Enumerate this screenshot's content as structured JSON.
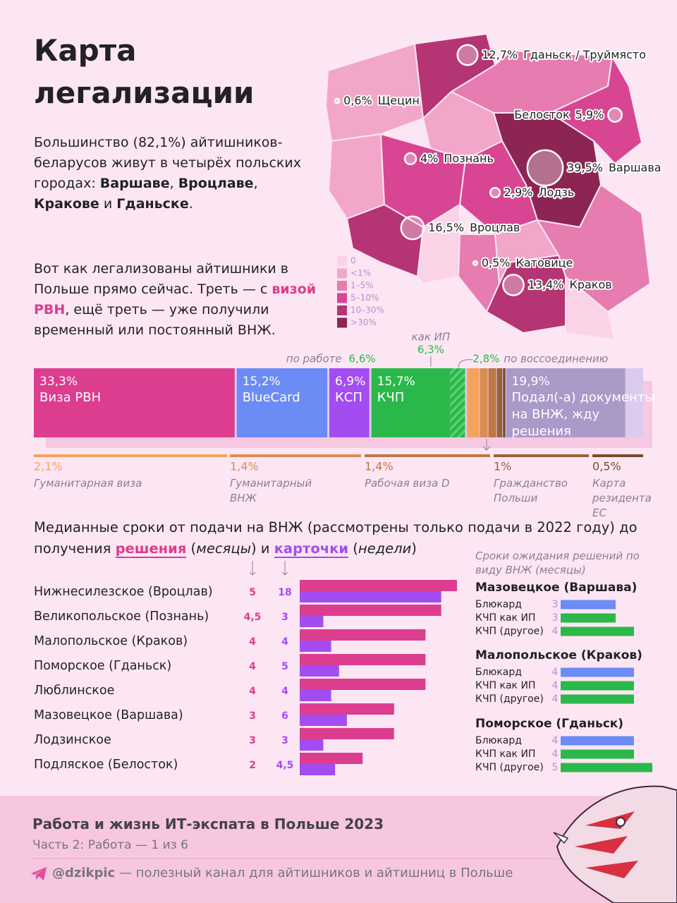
{
  "header": {
    "title": "Карта легализации"
  },
  "intro": [
    {
      "text": "Большинство (82,1%) айтишников-беларусов живут в четырёх польских городах: "
    },
    {
      "text": "Варшаве",
      "bold": true
    },
    {
      "text": ", "
    },
    {
      "text": "Вроцлаве",
      "bold": true
    },
    {
      "text": ", "
    },
    {
      "text": "Кракове",
      "bold": true
    },
    {
      "text": " и "
    },
    {
      "text": "Гданьске",
      "bold": true
    },
    {
      "text": "."
    }
  ],
  "note": [
    {
      "text": "Вот как легализованы айтишники в Польше прямо сейчас. Треть — с "
    },
    {
      "text": "визой РВН",
      "bold": true,
      "color": "#dc3d8f"
    },
    {
      "text": ", ещё треть — уже получили временный или постоянный ВНЖ."
    }
  ],
  "map": {
    "type": "bubble-map",
    "cities": [
      {
        "value": 12.7,
        "label": "12,7%",
        "name": "Гданьск / Труймясто"
      },
      {
        "value": 0.6,
        "label": "0,6%",
        "name": "Щецин"
      },
      {
        "value": 5.9,
        "label": "5,9%",
        "name": "Белосток"
      },
      {
        "value": 4,
        "label": "4%",
        "name": "Познань"
      },
      {
        "value": 39.5,
        "label": "39,5%",
        "name": "Варшава"
      },
      {
        "value": 2.9,
        "label": "2,9%",
        "name": "Лодзь"
      },
      {
        "value": 16.5,
        "label": "16,5%",
        "name": "Вроцлав"
      },
      {
        "value": 0.5,
        "label": "0,5%",
        "name": "Катовице"
      },
      {
        "value": 13.4,
        "label": "13,4%",
        "name": "Краков"
      }
    ],
    "legend": [
      {
        "label": "0",
        "color": "#fbd3e6"
      },
      {
        "label": "<1%",
        "color": "#f2a6ca"
      },
      {
        "label": "1–5%",
        "color": "#e67cb0"
      },
      {
        "label": "5–10%",
        "color": "#d84592"
      },
      {
        "label": "10–30%",
        "color": "#b53473"
      },
      {
        "label": ">30%",
        "color": "#8c2553"
      }
    ]
  },
  "legalization": {
    "type": "stacked-bar",
    "xlim": [
      0,
      100
    ],
    "segments": [
      {
        "name": "Виза РВН",
        "value": 33.3,
        "value_label": "33,3%",
        "color": "#dc3d8f"
      },
      {
        "name": "BlueCard",
        "value": 15.2,
        "value_label": "15,2%",
        "color": "#6b8cf5"
      },
      {
        "name": "КСП",
        "value": 6.9,
        "value_label": "6,9%",
        "color": "#a34df0"
      },
      {
        "name": "КЧП",
        "value": 15.7,
        "value_label": "15,7%",
        "color": "#2bb84a",
        "parts": [
          {
            "name": "по работе",
            "value": 6.6,
            "value_label": "6,6%"
          },
          {
            "name": "как ИП",
            "value": 6.3,
            "value_label": "6,3%"
          },
          {
            "name": "по воссоединению",
            "value": 2.8,
            "value_label": "2,8%",
            "hatched": true
          }
        ]
      },
      {
        "parts": [
          {
            "name": "Гуманитарная виза",
            "value": 2.1,
            "value_label": "2,1%",
            "color": "#f5a35c"
          },
          {
            "name": "Гуманитарный ВНЖ",
            "value": 1.4,
            "value_label": "1,4%",
            "color": "#dc8c4e"
          },
          {
            "name": "Рабочая виза D",
            "value": 1.4,
            "value_label": "1,4%",
            "color": "#bd7845"
          },
          {
            "name": "Гражданство Польши",
            "value": 1,
            "value_label": "1%",
            "color": "#9c6139"
          },
          {
            "name": "Карта резидента ЕС",
            "value": 0.5,
            "value_label": "0,5%",
            "color": "#7a4a2c"
          }
        ]
      },
      {
        "name": "Подал(-а) документы на ВНЖ, жду решения",
        "value": 19.9,
        "value_label": "19,9%",
        "color": "#a99ac8"
      }
    ]
  },
  "medians": {
    "type": "grouped-bar",
    "title_parts": [
      "Медианные сроки от подачи на ВНЖ (рассмотрены только подачи в 2022 году) до получения ",
      " (",
      ") и ",
      " (",
      ")"
    ],
    "categories": [
      "Нижнесилезское (Вроцлав)",
      "Великопольское (Познань)",
      "Малопольское (Краков)",
      "Поморское (Гданьск)",
      "Люблинское",
      "Мазовецкое (Варшава)",
      "Лодзинское",
      "Подляское (Белосток)"
    ],
    "series": [
      {
        "name": "решения",
        "unit": "месяцы",
        "color": "#dc3d8f",
        "xlim": [
          0,
          5
        ],
        "values": [
          5,
          4.5,
          4,
          4,
          4,
          3,
          3,
          2
        ],
        "value_labels": [
          "5",
          "4,5",
          "4",
          "4",
          "4",
          "3",
          "3",
          "2"
        ]
      },
      {
        "name": "карточки",
        "unit": "недели",
        "color": "#a34df0",
        "xlim": [
          0,
          20
        ],
        "values": [
          18,
          3,
          4,
          5,
          4,
          6,
          3,
          4.5
        ],
        "value_labels": [
          "18",
          "3",
          "4",
          "5",
          "4",
          "6",
          "3",
          "4,5"
        ]
      }
    ]
  },
  "waits": {
    "type": "bar-groups",
    "title": "Сроки ожидания решений по виду ВНЖ (месяцы)",
    "xlim": [
      0,
      5
    ],
    "colors": [
      "#6b8cf5",
      "#2bb84a",
      "#2bb84a"
    ],
    "groups": [
      {
        "name": "Мазовецкое (Варшава)",
        "categories": [
          "Блюкард",
          "КЧП как ИП",
          "КЧП (другое)"
        ],
        "values": [
          3,
          3,
          4
        ]
      },
      {
        "name": "Малопольское (Краков)",
        "categories": [
          "Блюкард",
          "КЧП как ИП",
          "КЧП (другое)"
        ],
        "values": [
          4,
          4,
          4
        ]
      },
      {
        "name": "Поморское (Гданьск)",
        "categories": [
          "Блюкард",
          "КЧП как ИП",
          "КЧП (другое)"
        ],
        "values": [
          4,
          4,
          5
        ]
      }
    ]
  },
  "footer": {
    "title": "Работа и жизнь ИТ-экспата в Польше 2023",
    "subtitle": "Часть 2: Работа — 1 из 6",
    "handle": "@dzikpic",
    "tagline": "— полезный канал для айтишников и айтишниц в Польше"
  }
}
